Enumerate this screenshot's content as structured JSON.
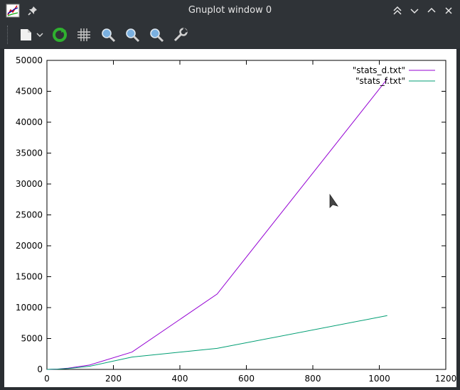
{
  "window": {
    "title": "Gnuplot window 0",
    "app_icon": "gnuplot-app-icon",
    "pin_icon": "pin-icon",
    "controls": [
      "keep-above-icon",
      "minimize-icon",
      "maximize-icon",
      "close-icon"
    ]
  },
  "toolbar": {
    "items": [
      "export-icon",
      "dropdown-arrow-icon",
      "replot-icon",
      "grid-icon",
      "zoom-previous-icon",
      "zoom-next-icon",
      "unzoom-icon",
      "settings-wrench-icon"
    ]
  },
  "colors": {
    "background": "#2a2e32",
    "series_d": "#9400d3",
    "series_f": "#009e73"
  },
  "chart_data": {
    "type": "line",
    "title": "",
    "xlabel": "",
    "ylabel": "",
    "xlim": [
      0,
      1200
    ],
    "ylim": [
      0,
      50000
    ],
    "xticks": [
      0,
      200,
      400,
      600,
      800,
      1000,
      1200
    ],
    "yticks": [
      0,
      5000,
      10000,
      15000,
      20000,
      25000,
      30000,
      35000,
      40000,
      45000,
      50000
    ],
    "grid": false,
    "legend_position": "top-right",
    "series": [
      {
        "name": "\"stats_d.txt\"",
        "color": "#9400d3",
        "x": [
          0,
          16,
          32,
          64,
          128,
          256,
          512,
          1024
        ],
        "y": [
          0,
          20,
          60,
          200,
          700,
          2800,
          12200,
          47000
        ]
      },
      {
        "name": "\"stats_f.txt\"",
        "color": "#009e73",
        "x": [
          0,
          16,
          32,
          64,
          128,
          256,
          512,
          1024
        ],
        "y": [
          0,
          20,
          50,
          150,
          500,
          2000,
          3400,
          8700
        ]
      }
    ]
  }
}
